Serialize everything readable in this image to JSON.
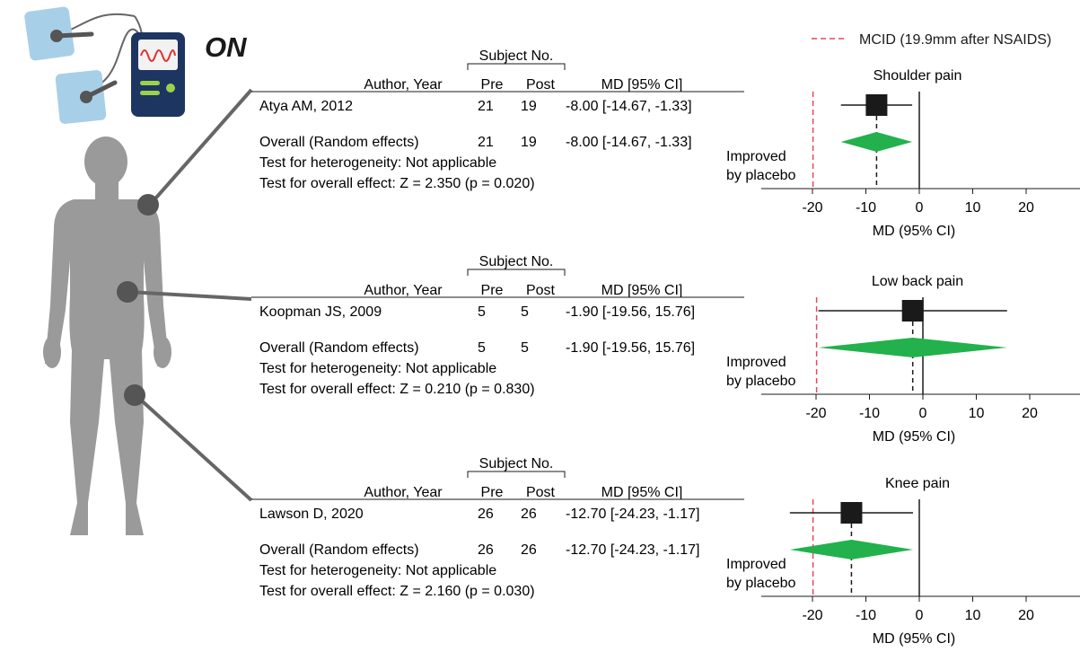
{
  "on_label": "ON",
  "legend": "MCID (19.9mm after NSAIDS)",
  "headers": {
    "subject_no": "Subject No.",
    "author_year": "Author, Year",
    "pre": "Pre",
    "post": "Post",
    "md_ci": "MD [95% CI]"
  },
  "panels": [
    {
      "title": "Shoulder pain",
      "study": {
        "author": "Atya AM, 2012",
        "pre": "21",
        "post": "19",
        "md_text": "-8.00 [-14.67, -1.33]"
      },
      "overall": {
        "label": "Overall (Random effects)",
        "pre": "21",
        "post": "19",
        "md_text": "-8.00 [-14.67, -1.33]"
      },
      "heterogeneity": "Test for heterogeneity: Not applicable",
      "overall_effect": "Test for overall effect: Z = 2.350 (p = 0.020)"
    },
    {
      "title": "Low back pain",
      "study": {
        "author": "Koopman JS, 2009",
        "pre": "5",
        "post": "5",
        "md_text": "-1.90  [-19.56, 15.76]"
      },
      "overall": {
        "label": "Overall (Random effects)",
        "pre": "5",
        "post": "5",
        "md_text": "-1.90  [-19.56, 15.76]"
      },
      "heterogeneity": "Test for heterogeneity: Not applicable",
      "overall_effect": "Test for overall effect: Z = 0.210 (p = 0.830)"
    },
    {
      "title": "Knee pain",
      "study": {
        "author": "Lawson D, 2020",
        "pre": "26",
        "post": "26",
        "md_text": "-12.70 [-24.23, -1.17]"
      },
      "overall": {
        "label": "Overall (Random effects)",
        "pre": "26",
        "post": "26",
        "md_text": "-12.70 [-24.23, -1.17]"
      },
      "heterogeneity": "Test for heterogeneity: Not applicable",
      "overall_effect": "Test for overall effect: Z = 2.160 (p = 0.030)"
    }
  ],
  "chart_data": [
    {
      "type": "forest",
      "title": "Shoulder pain",
      "xlabel": "MD (95% CI)",
      "x_ticks": [
        -20,
        -10,
        0,
        10,
        20
      ],
      "xlim": [
        -25,
        30
      ],
      "annotation": [
        "Improved",
        "by placebo"
      ],
      "mcid": -19.9,
      "study": {
        "md": -8.0,
        "lo": -14.67,
        "hi": -1.33
      },
      "overall": {
        "md": -8.0,
        "lo": -14.67,
        "hi": -1.33
      }
    },
    {
      "type": "forest",
      "title": "Low back pain",
      "xlabel": "MD (95% CI)",
      "x_ticks": [
        -20,
        -10,
        0,
        10,
        20
      ],
      "xlim": [
        -25,
        30
      ],
      "annotation": [
        "Improved",
        "by placebo"
      ],
      "mcid": -19.9,
      "study": {
        "md": -1.9,
        "lo": -19.56,
        "hi": 15.76
      },
      "overall": {
        "md": -1.9,
        "lo": -19.56,
        "hi": 15.76
      }
    },
    {
      "type": "forest",
      "title": "Knee pain",
      "xlabel": "MD (95% CI)",
      "x_ticks": [
        -20,
        -10,
        0,
        10,
        20
      ],
      "xlim": [
        -25,
        30
      ],
      "annotation": [
        "Improved",
        "by placebo"
      ],
      "mcid": -19.9,
      "study": {
        "md": -12.7,
        "lo": -24.23,
        "hi": -1.17
      },
      "overall": {
        "md": -12.7,
        "lo": -24.23,
        "hi": -1.17
      }
    }
  ],
  "colors": {
    "diamond": "#22b14c",
    "mcid": "#e8465a",
    "figure": "#9a9a9a",
    "marker": "#1a1a1a",
    "electrode": "#a8cfe8",
    "device": "#1d3561",
    "device_screen": "#f2f2f2",
    "device_accent": "#9ad24a"
  },
  "icons": {
    "device": "tens-device-icon",
    "electrode": "electrode-pad-icon",
    "body": "human-body-icon"
  }
}
